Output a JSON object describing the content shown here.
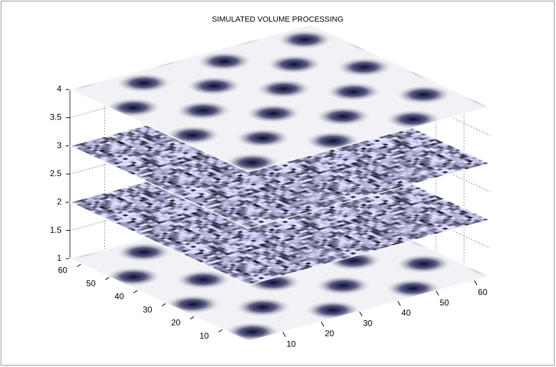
{
  "chart_data": {
    "type": "slice3d",
    "title": "SIMULATED VOLUME PROCESSING",
    "slices": [
      1,
      2,
      3,
      4
    ],
    "xlim": [
      1,
      64
    ],
    "xticks": [
      10,
      20,
      30,
      40,
      50,
      60
    ],
    "ylim": [
      1,
      64
    ],
    "yticks": [
      10,
      20,
      30,
      40,
      50,
      60
    ],
    "zlim": [
      1,
      4
    ],
    "zticks": [
      1,
      1.5,
      2,
      2.5,
      3,
      3.5,
      4
    ],
    "grid": true
  }
}
